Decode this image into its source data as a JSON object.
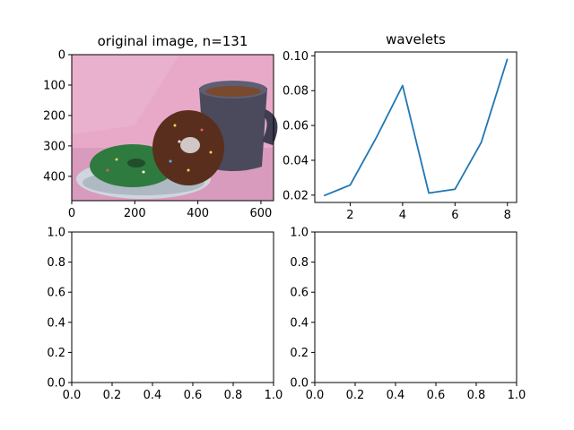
{
  "chart_data": [
    {
      "type": "image",
      "title": "original image, n=131",
      "xlim": [
        0,
        640
      ],
      "ylim": [
        480,
        0
      ],
      "x_ticks": [
        0,
        200,
        400,
        600
      ],
      "y_ticks": [
        0,
        100,
        200,
        300,
        400
      ],
      "x_tick_labels": [
        "0",
        "200",
        "400",
        "600"
      ],
      "y_tick_labels": [
        "0",
        "100",
        "200",
        "300",
        "400"
      ],
      "image_description_colors": {
        "background": "#e8a9c8",
        "table": "#d08fb2",
        "plate": "#cfd6dc",
        "green_donut": "#2f7a3e",
        "chocolate_donut": "#5a2e1c",
        "mug": "#4a4a5c",
        "coffee": "#7a4a2e"
      }
    },
    {
      "type": "line",
      "title": "wavelets",
      "x": [
        1,
        2,
        3,
        4,
        5,
        6,
        7,
        8
      ],
      "series": [
        {
          "values": [
            0.0197,
            0.0258,
            0.0531,
            0.0829,
            0.0212,
            0.0234,
            0.0502,
            0.0983
          ],
          "color": "#1f77b4"
        }
      ],
      "xlim": [
        0.65,
        8.35
      ],
      "ylim": [
        0.0158,
        0.1022
      ],
      "x_ticks": [
        2,
        4,
        6,
        8
      ],
      "y_ticks": [
        0.02,
        0.04,
        0.06,
        0.08,
        0.1
      ],
      "x_tick_labels": [
        "2",
        "4",
        "6",
        "8"
      ],
      "y_tick_labels": [
        "0.02",
        "0.04",
        "0.06",
        "0.08",
        "0.10"
      ]
    },
    {
      "type": "empty",
      "title": "",
      "xlim": [
        0,
        1
      ],
      "ylim": [
        0,
        1
      ],
      "x_ticks": [
        0,
        0.2,
        0.4,
        0.6,
        0.8,
        1.0
      ],
      "y_ticks": [
        0,
        0.2,
        0.4,
        0.6,
        0.8,
        1.0
      ],
      "x_tick_labels": [
        "0.0",
        "0.2",
        "0.4",
        "0.6",
        "0.8",
        "1.0"
      ],
      "y_tick_labels": [
        "0.0",
        "0.2",
        "0.4",
        "0.6",
        "0.8",
        "1.0"
      ]
    },
    {
      "type": "empty",
      "title": "",
      "xlim": [
        0,
        1
      ],
      "ylim": [
        0,
        1
      ],
      "x_ticks": [
        0,
        0.2,
        0.4,
        0.6,
        0.8,
        1.0
      ],
      "y_ticks": [
        0,
        0.2,
        0.4,
        0.6,
        0.8,
        1.0
      ],
      "x_tick_labels": [
        "0.0",
        "0.2",
        "0.4",
        "0.6",
        "0.8",
        "1.0"
      ],
      "y_tick_labels": [
        "0.0",
        "0.2",
        "0.4",
        "0.6",
        "0.8",
        "1.0"
      ]
    }
  ]
}
